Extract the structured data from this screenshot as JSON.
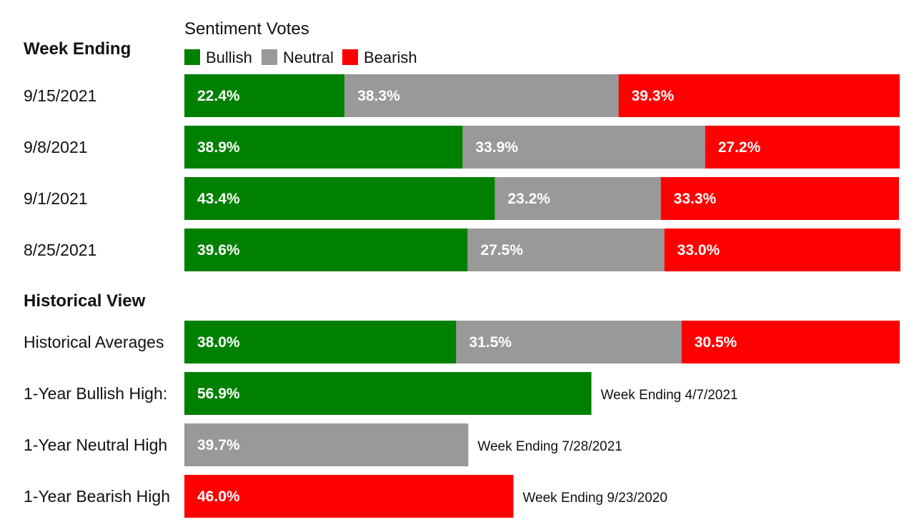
{
  "chart_data": {
    "type": "bar",
    "stacked": true,
    "orientation": "horizontal",
    "title": "Sentiment Votes",
    "row_header": "Week Ending",
    "xlim": [
      0,
      100
    ],
    "legend": {
      "placement": "top",
      "entries": [
        {
          "name": "Bullish",
          "color": "#008000"
        },
        {
          "name": "Neutral",
          "color": "#999999"
        },
        {
          "name": "Bearish",
          "color": "#ff0000"
        }
      ]
    },
    "weekly": {
      "categories": [
        "9/15/2021",
        "9/8/2021",
        "9/1/2021",
        "8/25/2021"
      ],
      "series": [
        {
          "name": "Bullish",
          "color": "#008000",
          "values": [
            22.4,
            38.9,
            43.4,
            39.6
          ],
          "labels": [
            "22.4%",
            "38.9%",
            "43.4%",
            "39.6%"
          ]
        },
        {
          "name": "Neutral",
          "color": "#999999",
          "values": [
            38.3,
            33.9,
            23.2,
            27.5
          ],
          "labels": [
            "38.3%",
            "33.9%",
            "23.2%",
            "27.5%"
          ]
        },
        {
          "name": "Bearish",
          "color": "#ff0000",
          "values": [
            39.3,
            27.2,
            33.3,
            33.0
          ],
          "labels": [
            "39.3%",
            "27.2%",
            "33.3%",
            "33.0%"
          ]
        }
      ]
    },
    "historical": {
      "title": "Historical View",
      "averages": {
        "label": "Historical Averages",
        "segments": [
          {
            "name": "Bullish",
            "color": "#008000",
            "value": 38.0,
            "label": "38.0%"
          },
          {
            "name": "Neutral",
            "color": "#999999",
            "value": 31.5,
            "label": "31.5%"
          },
          {
            "name": "Bearish",
            "color": "#ff0000",
            "value": 30.5,
            "label": "30.5%"
          }
        ]
      },
      "highs": [
        {
          "label": "1-Year Bullish High:",
          "name": "Bullish",
          "color": "#008000",
          "value": 56.9,
          "value_label": "56.9%",
          "note": "Week Ending 4/7/2021"
        },
        {
          "label": "1-Year Neutral High",
          "name": "Neutral",
          "color": "#999999",
          "value": 39.7,
          "value_label": "39.7%",
          "note": "Week Ending 7/28/2021"
        },
        {
          "label": "1-Year Bearish High",
          "name": "Bearish",
          "color": "#ff0000",
          "value": 46.0,
          "value_label": "46.0%",
          "note": "Week Ending 9/23/2020"
        }
      ]
    }
  }
}
